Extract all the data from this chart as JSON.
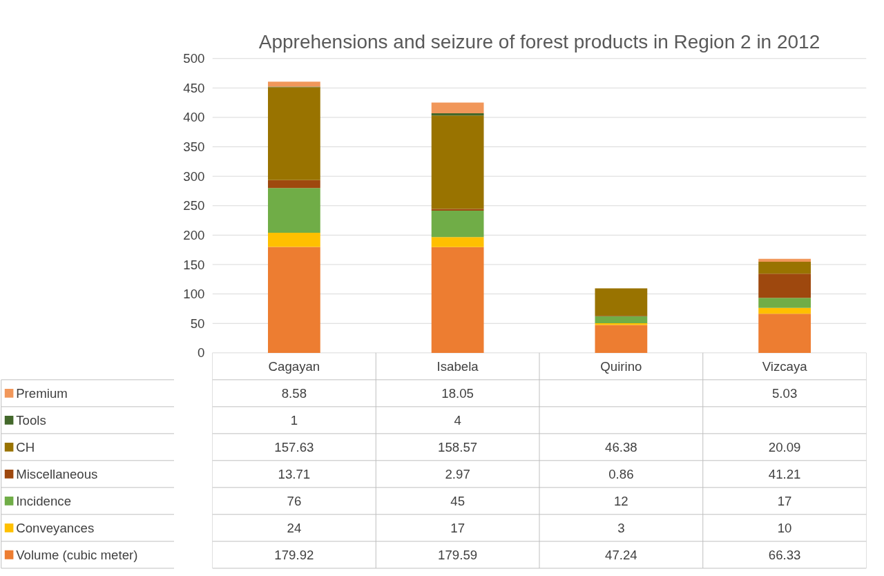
{
  "chart_data": {
    "type": "bar",
    "stacked": true,
    "title": "Apprehensions and seizure of forest products in Region 2 in 2012",
    "categories": [
      "Cagayan",
      "Isabela",
      "Quirino",
      "Vizcaya"
    ],
    "series": [
      {
        "name": "Volume (cubic meter)",
        "color": "#ed7d31",
        "values": [
          179.92,
          179.59,
          47.24,
          66.33
        ]
      },
      {
        "name": "Conveyances",
        "color": "#ffc000",
        "values": [
          24,
          17,
          3,
          10
        ]
      },
      {
        "name": "Incidence",
        "color": "#70ad47",
        "values": [
          76,
          45,
          12,
          17
        ]
      },
      {
        "name": "Miscellaneous",
        "color": "#9e480e",
        "values": [
          13.71,
          2.97,
          0.86,
          41.21
        ]
      },
      {
        "name": "CH",
        "color": "#997300",
        "values": [
          157.63,
          158.57,
          46.38,
          20.09
        ]
      },
      {
        "name": "Tools",
        "color": "#43682b",
        "values": [
          1,
          4,
          null,
          null
        ]
      },
      {
        "name": "Premium",
        "color": "#f1975a",
        "values": [
          8.58,
          18.05,
          null,
          5.03
        ]
      }
    ],
    "ylim": [
      0,
      500
    ],
    "yticks": [
      0,
      50,
      100,
      150,
      200,
      250,
      300,
      350,
      400,
      450,
      500
    ],
    "grid": "y",
    "legend": "bottom",
    "data_labels": true
  }
}
